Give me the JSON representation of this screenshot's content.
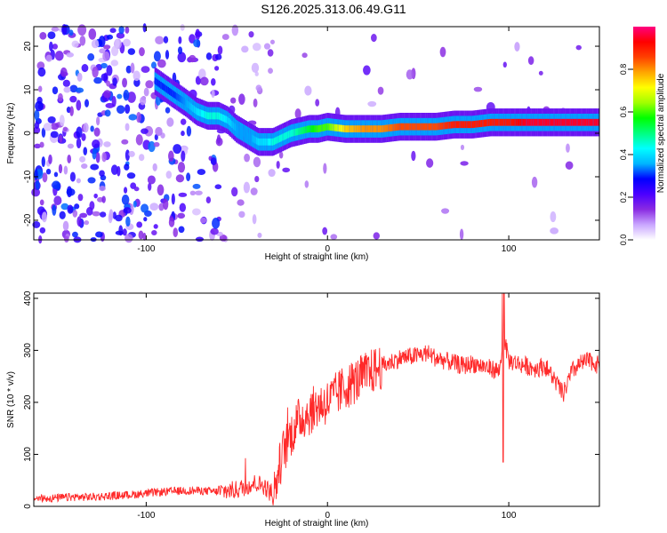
{
  "figure": {
    "title": "S126.2025.313.06.49.G11"
  },
  "chart_data": [
    {
      "type": "heatmap",
      "xlabel": "Height of straight line (km)",
      "ylabel": "Frequency (Hz)",
      "xlim": [
        -162,
        150
      ],
      "ylim": [
        -24.5,
        24.5
      ],
      "xticks": [
        -100,
        0,
        100
      ],
      "yticks": [
        -20,
        -10,
        0,
        10,
        20
      ],
      "colorbar": {
        "label": "Normalized spectral amplitude",
        "range": [
          0.0,
          1.0
        ],
        "ticks": [
          0.0,
          0.2,
          0.4,
          0.6,
          0.8
        ],
        "colormap": [
          "#ffffff",
          "#c9a6ff",
          "#8a2be2",
          "#4b00ff",
          "#0000ff",
          "#00b4ff",
          "#00ffff",
          "#00ff80",
          "#00ff00",
          "#a0ff00",
          "#ffff00",
          "#ffa500",
          "#ff4000",
          "#ff0000",
          "#ff0080"
        ]
      },
      "ridge": {
        "description_free": true,
        "x": [
          -95,
          -85,
          -78,
          -72,
          -66,
          -60,
          -55,
          -50,
          -46,
          -42,
          -38,
          -34,
          -30,
          -25,
          -20,
          -15,
          -10,
          -5,
          0,
          10,
          20,
          30,
          40,
          50,
          60,
          70,
          80,
          90,
          100,
          110,
          120,
          130,
          140,
          150
        ],
        "y": [
          12,
          9,
          7,
          5,
          4,
          4,
          3,
          1,
          0,
          -1,
          -2,
          -2,
          -2,
          -1,
          0,
          0.5,
          1,
          1,
          1.5,
          1,
          1,
          1,
          1.5,
          1.5,
          1.5,
          2,
          2,
          2.5,
          2.5,
          2.5,
          2.5,
          2.5,
          2.5,
          2.5
        ],
        "amplitude": [
          0.3,
          0.3,
          0.35,
          0.4,
          0.45,
          0.45,
          0.4,
          0.35,
          0.35,
          0.35,
          0.4,
          0.4,
          0.45,
          0.45,
          0.45,
          0.5,
          0.55,
          0.6,
          0.6,
          0.75,
          0.8,
          0.8,
          0.85,
          0.85,
          0.85,
          0.9,
          0.9,
          0.9,
          0.9,
          0.95,
          0.95,
          0.95,
          0.95,
          0.95
        ]
      }
    },
    {
      "type": "line",
      "xlabel": "Height of straight line (km)",
      "ylabel": "SNR (10 * v/v)",
      "xlim": [
        -162,
        150
      ],
      "ylim": [
        0,
        410
      ],
      "xticks": [
        -100,
        0,
        100
      ],
      "yticks": [
        0,
        100,
        200,
        300,
        400
      ],
      "color": "#ff2a2a",
      "x": [
        -162,
        -150,
        -140,
        -130,
        -120,
        -110,
        -100,
        -90,
        -80,
        -70,
        -60,
        -50,
        -45,
        -40,
        -35,
        -30,
        -25,
        -20,
        -15,
        -10,
        -5,
        0,
        10,
        20,
        30,
        40,
        50,
        55,
        60,
        65,
        70,
        75,
        80,
        85,
        90,
        95,
        97,
        100,
        105,
        110,
        115,
        120,
        125,
        130,
        135,
        140,
        145,
        150
      ],
      "y": [
        15,
        16,
        18,
        18,
        20,
        22,
        25,
        28,
        30,
        30,
        28,
        32,
        38,
        45,
        40,
        20,
        100,
        140,
        170,
        180,
        195,
        200,
        230,
        250,
        270,
        285,
        290,
        295,
        285,
        280,
        275,
        270,
        275,
        270,
        265,
        260,
        330,
        280,
        275,
        270,
        265,
        270,
        245,
        215,
        260,
        275,
        280,
        270
      ]
    }
  ]
}
